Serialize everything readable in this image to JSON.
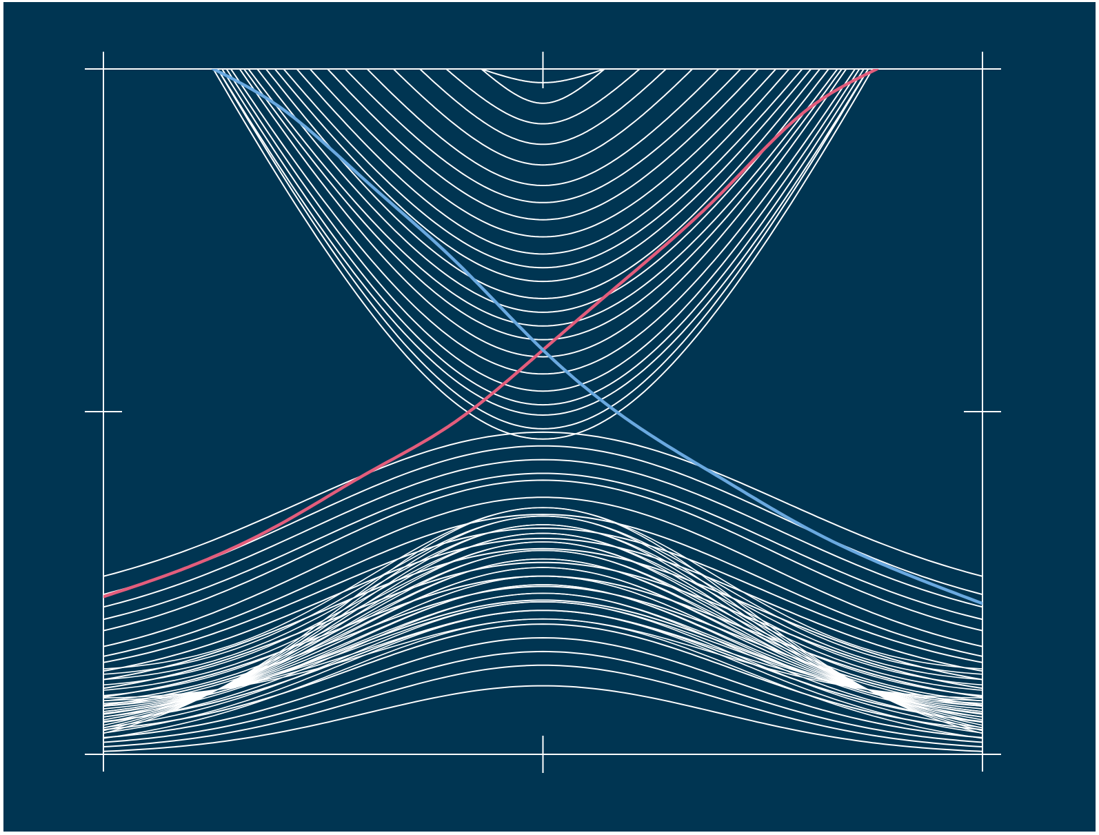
{
  "chart_data": {
    "type": "line",
    "title": "",
    "xlabel": "",
    "ylabel": "",
    "xlim": [
      -1,
      1
    ],
    "ylim": [
      -1,
      1
    ],
    "grid": false,
    "legend": "none",
    "colors": {
      "background": "#003552",
      "frame": "#ffffff",
      "bulk_bands": "#ffffff",
      "edge_state_up": "#e35d7c",
      "edge_state_down": "#6aa9e0"
    },
    "edge_states": [
      {
        "color": "#e35d7c",
        "x": [
          -1.0,
          -0.8,
          -0.6,
          -0.4,
          -0.2,
          0.0,
          0.2,
          0.4,
          0.6,
          0.76
        ],
        "y": [
          -0.54,
          -0.45,
          -0.33,
          -0.18,
          -0.03,
          0.18,
          0.4,
          0.63,
          0.88,
          1.0
        ]
      },
      {
        "color": "#6aa9e0",
        "x": [
          -0.75,
          -0.6,
          -0.4,
          -0.2,
          0.0,
          0.2,
          0.4,
          0.6,
          0.8,
          1.0
        ],
        "y": [
          1.0,
          0.89,
          0.67,
          0.44,
          0.18,
          -0.03,
          -0.19,
          -0.34,
          -0.46,
          -0.56
        ]
      }
    ],
    "conduction_bands": {
      "x_nodes": [
        -0.75,
        -0.4,
        -0.2,
        0.0,
        0.2,
        0.4,
        0.75
      ],
      "minima_at_zero": [
        0.96,
        0.9,
        0.84,
        0.78,
        0.72,
        0.66,
        0.61,
        0.56,
        0.51,
        0.46,
        0.42,
        0.38,
        0.33,
        0.29,
        0.25,
        0.21,
        0.16,
        0.11,
        0.06,
        0.02,
        -0.01,
        -0.05,
        -0.08
      ],
      "endpoint_x_abs": [
        0.14,
        0.14,
        0.22,
        0.28,
        0.34,
        0.4,
        0.45,
        0.49,
        0.53,
        0.56,
        0.59,
        0.61,
        0.63,
        0.65,
        0.67,
        0.68,
        0.69,
        0.71,
        0.72,
        0.73,
        0.74,
        0.74,
        0.75
      ]
    },
    "valence_bands": {
      "x_nodes": [
        -1.0,
        -0.8,
        -0.6,
        -0.4,
        -0.2,
        0.0,
        0.2,
        0.4,
        0.6,
        0.8,
        1.0
      ],
      "maxima_at_zero": [
        -0.06,
        -0.1,
        -0.14,
        -0.18,
        -0.2,
        -0.25,
        -0.3,
        -0.34,
        -0.37,
        -0.4,
        -0.44,
        -0.48,
        -0.51,
        -0.55,
        -0.58,
        -0.62,
        -0.66,
        -0.7,
        -0.74,
        -0.8
      ],
      "edge_values_at_x_abs_1": [
        -0.58,
        -0.63,
        -0.66,
        -0.69,
        -0.72,
        -0.76,
        -0.78,
        -0.79,
        -0.81,
        -0.83,
        -0.85,
        -0.87,
        -0.89,
        -0.91,
        -0.93,
        -0.95,
        -0.97,
        -0.98,
        -0.99,
        -1.0
      ]
    }
  }
}
